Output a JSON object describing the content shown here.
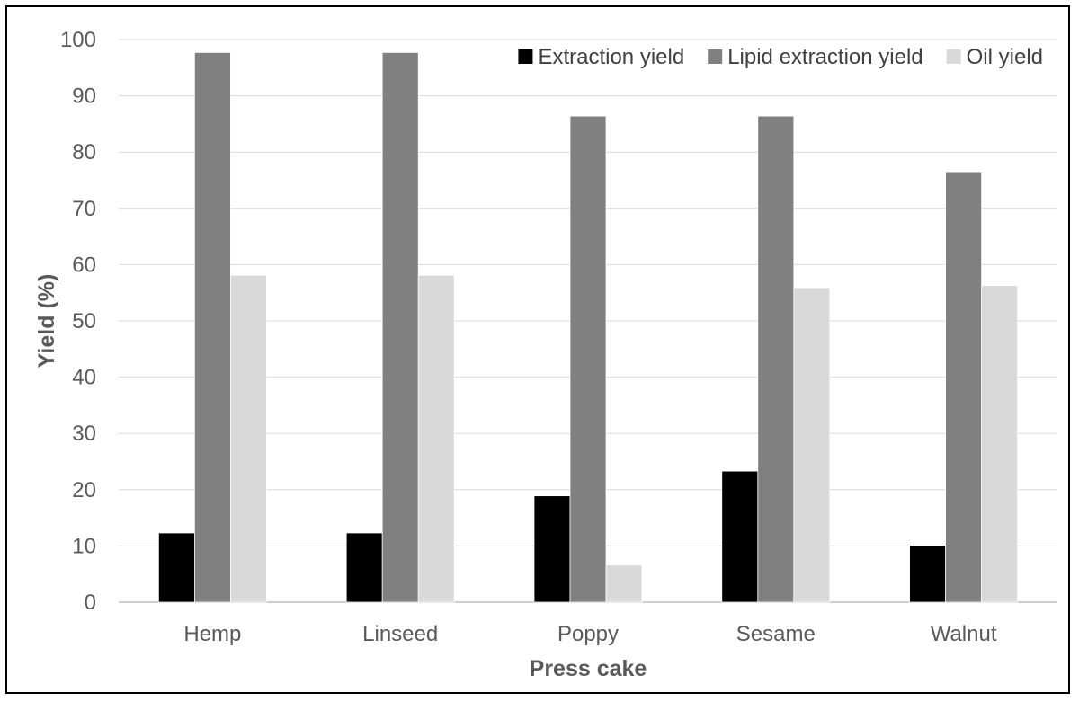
{
  "chart_data": {
    "type": "bar",
    "title": "",
    "xlabel": "Press cake",
    "ylabel": "Yield (%)",
    "categories": [
      "Hemp",
      "Linseed",
      "Poppy",
      "Sesame",
      "Walnut"
    ],
    "series": [
      {
        "name": "Extraction yield",
        "color": "#000000",
        "values": [
          12.3,
          12.3,
          18.9,
          23.3,
          10.1
        ]
      },
      {
        "name": "Lipid extraction yield",
        "color": "#808080",
        "values": [
          97.7,
          97.7,
          86.4,
          86.4,
          76.5
        ]
      },
      {
        "name": "Oil yield",
        "color": "#d9d9d9",
        "values": [
          58.1,
          58.1,
          6.6,
          55.9,
          56.3
        ]
      }
    ],
    "ylim": [
      0,
      100
    ],
    "yticks": [
      "0",
      "10",
      "20",
      "30",
      "40",
      "50",
      "60",
      "70",
      "80",
      "90",
      "100"
    ],
    "grid": true,
    "legend_position": "top-right"
  }
}
